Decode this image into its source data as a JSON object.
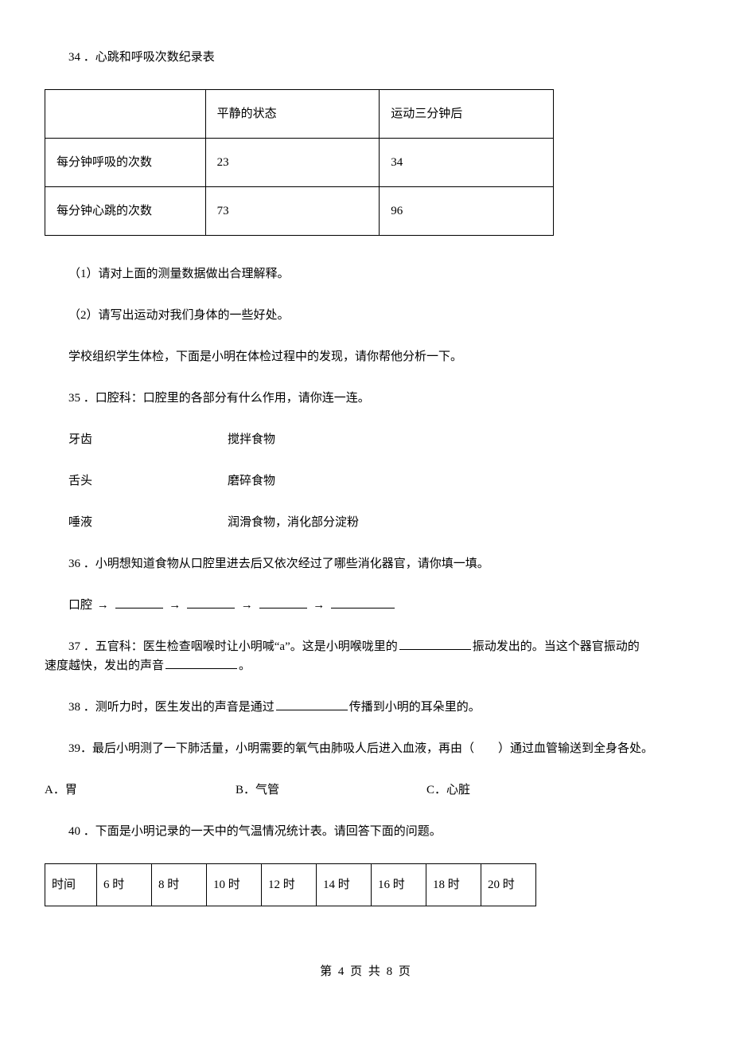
{
  "q34": {
    "title": "34 ．心跳和呼吸次数纪录表",
    "table": {
      "header": [
        "",
        "平静的状态",
        "运动三分钟后"
      ],
      "rows": [
        [
          "每分钟呼吸的次数",
          "23",
          "34"
        ],
        [
          "每分钟心跳的次数",
          "73",
          "96"
        ]
      ]
    },
    "sub1": "（1）请对上面的测量数据做出合理解释。",
    "sub2": "（2）请写出运动对我们身体的一些好处。"
  },
  "intro35": "学校组织学生体检，下面是小明在体检过程中的发现，请你帮他分析一下。",
  "q35": {
    "title": "35 ．口腔科：口腔里的各部分有什么作用，请你连一连。",
    "pairs": [
      {
        "left": "牙齿",
        "right": "搅拌食物"
      },
      {
        "left": "舌头",
        "right": "磨碎食物"
      },
      {
        "left": "唾液",
        "right": "润滑食物，消化部分淀粉"
      }
    ]
  },
  "q36": {
    "title": "36 ．小明想知道食物从口腔里进去后又依次经过了哪些消化器官，请你填一填。",
    "start_label": "口腔",
    "arrow": "→",
    "blank_widths": [
      60,
      60,
      60,
      80
    ]
  },
  "q37": {
    "pre": "37 ．五官科：医生检查咽喉时让小明喊“a”。这是小明喉咙里的",
    "mid": "振动发出的。当这个器官振动的",
    "line2_pre": "速度越快，发出的声音",
    "line2_post": "。",
    "blank1_width": 90,
    "blank2_width": 90
  },
  "q38": {
    "pre": "38 ．测听力时，医生发出的声音是通过",
    "post": "传播到小明的耳朵里的。",
    "blank_width": 90
  },
  "q39": {
    "text": "39．最后小明测了一下肺活量，小明需要的氧气由肺吸人后进入血液，再由（　　）通过血管输送到全身各处。",
    "options": {
      "A": "A．胃",
      "B": "B．气管",
      "C": "C．心脏"
    }
  },
  "q40": {
    "title": "40 ．下面是小明记录的一天中的气温情况统计表。请回答下面的问题。",
    "table": {
      "header": [
        "时间",
        "6 时",
        "8 时",
        "10 时",
        "12 时",
        "14 时",
        "16 时",
        "18 时",
        "20 时"
      ]
    }
  },
  "footer": "第 4 页 共 8 页"
}
